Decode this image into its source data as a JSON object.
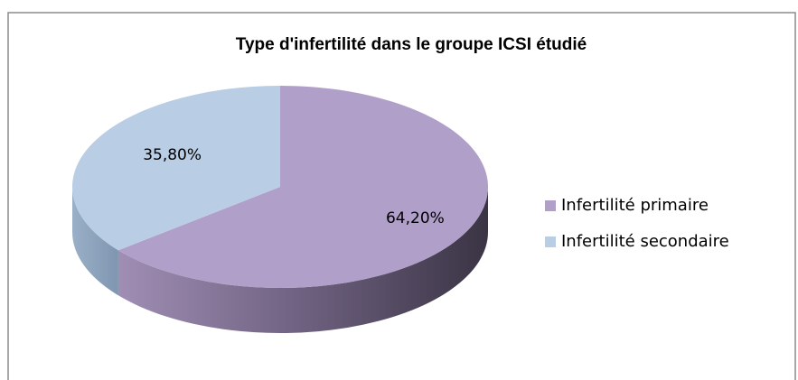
{
  "chart_data": {
    "type": "pie3d",
    "title": "Type d'infertilité  dans le groupe ICSI étudié",
    "categories": [
      "Infertilité primaire",
      "Infertilité secondaire"
    ],
    "values": [
      64.2,
      35.8
    ],
    "value_labels": [
      "64,20%",
      "35,80%"
    ],
    "colors": [
      "#b09fc9",
      "#b9cde5"
    ],
    "legend": "right"
  }
}
